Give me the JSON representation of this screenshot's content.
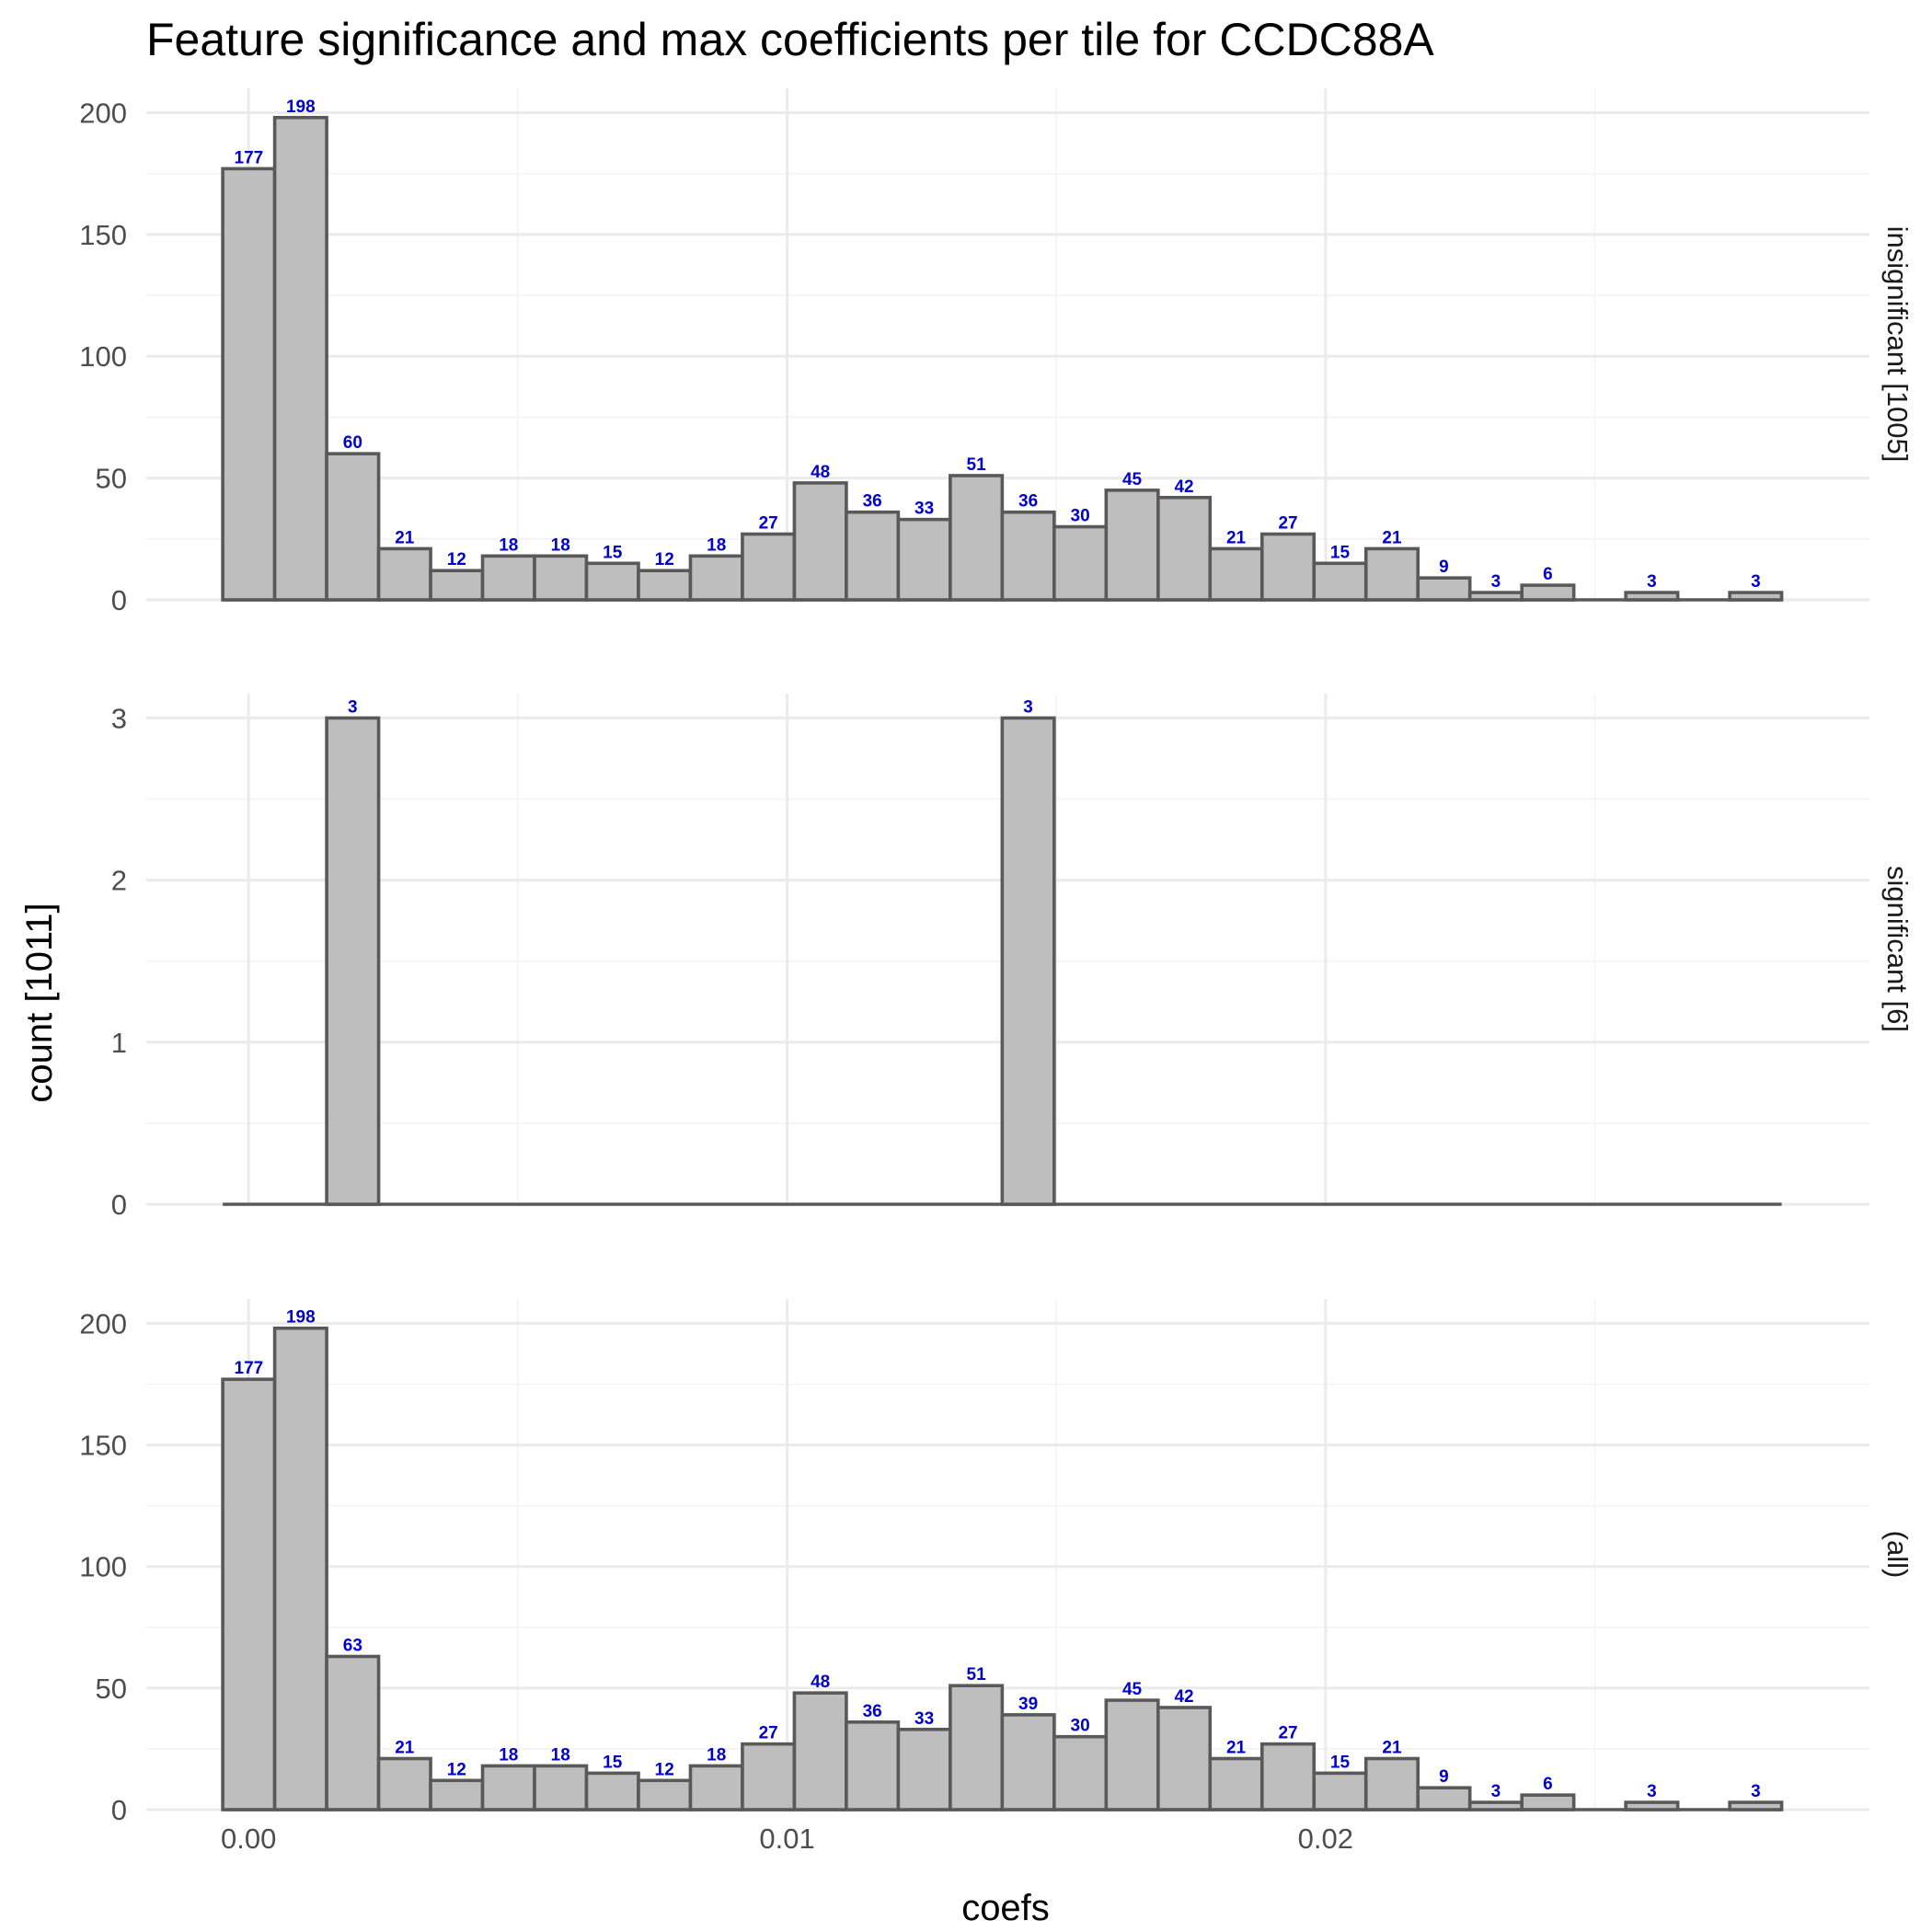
{
  "chart_data": {
    "type": "bar",
    "title": "Feature significance and max coefficients per tile for CCDC88A",
    "xlabel": "coefs",
    "ylabel": "count [1011]",
    "x_ticks": [
      "0.00",
      "0.01",
      "0.02"
    ],
    "x_tick_values": [
      0.0,
      0.01,
      0.02
    ],
    "xlim": [
      -0.0019,
      0.0301
    ],
    "bin_start": -0.00048,
    "bin_width": 0.000965,
    "bin_count": 30,
    "grid": true,
    "label_color": "#0000cc",
    "bar_fill": "#bebebe",
    "bar_outline": "#595959",
    "panels": [
      {
        "strip_label": "insignificant [1005]",
        "ylim": [
          0,
          210
        ],
        "y_ticks": [
          0,
          50,
          100,
          150,
          200
        ],
        "y_tick_labels": [
          "0",
          "50",
          "100",
          "150",
          "200"
        ],
        "values": [
          177,
          198,
          60,
          21,
          12,
          18,
          18,
          15,
          12,
          18,
          27,
          48,
          36,
          33,
          51,
          36,
          30,
          45,
          42,
          21,
          27,
          15,
          21,
          9,
          3,
          6,
          0,
          3,
          0,
          3
        ]
      },
      {
        "strip_label": "significant [6]",
        "ylim": [
          0,
          3.15
        ],
        "y_ticks": [
          0,
          1,
          2,
          3
        ],
        "y_tick_labels": [
          "0",
          "1",
          "2",
          "3"
        ],
        "values": [
          0,
          0,
          3,
          0,
          0,
          0,
          0,
          0,
          0,
          0,
          0,
          0,
          0,
          0,
          0,
          3,
          0,
          0,
          0,
          0,
          0,
          0,
          0,
          0,
          0,
          0,
          0,
          0,
          0,
          0
        ]
      },
      {
        "strip_label": "(all)",
        "ylim": [
          0,
          210
        ],
        "y_ticks": [
          0,
          50,
          100,
          150,
          200
        ],
        "y_tick_labels": [
          "0",
          "50",
          "100",
          "150",
          "200"
        ],
        "values": [
          177,
          198,
          63,
          21,
          12,
          18,
          18,
          15,
          12,
          18,
          27,
          48,
          36,
          33,
          51,
          39,
          30,
          45,
          42,
          21,
          27,
          15,
          21,
          9,
          3,
          6,
          0,
          3,
          0,
          3
        ]
      }
    ]
  }
}
